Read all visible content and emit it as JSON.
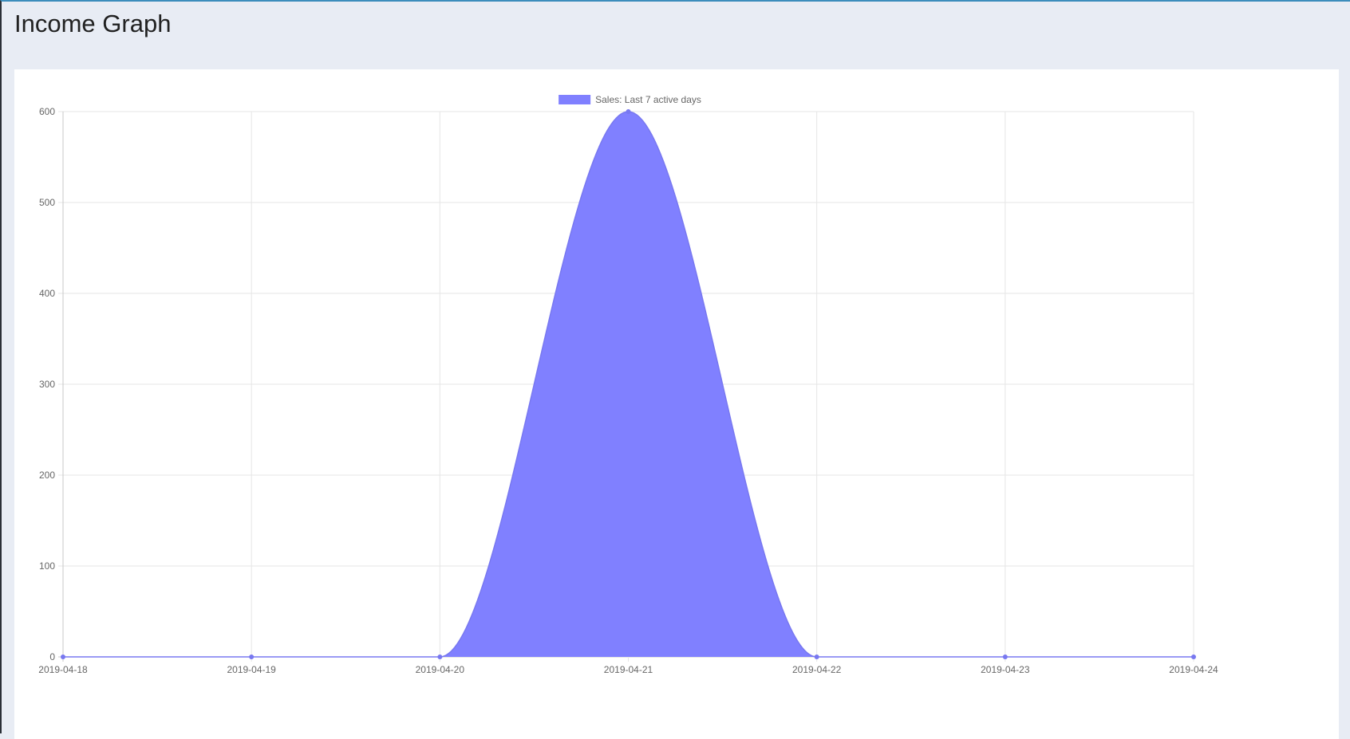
{
  "header": {
    "title": "Income Graph"
  },
  "chart_data": {
    "type": "area",
    "title": "",
    "xlabel": "",
    "ylabel": "",
    "categories": [
      "2019-04-18",
      "2019-04-19",
      "2019-04-20",
      "2019-04-21",
      "2019-04-22",
      "2019-04-23",
      "2019-04-24"
    ],
    "series": [
      {
        "name": "Sales: Last 7 active days",
        "values": [
          0,
          0,
          0,
          600,
          0,
          0,
          0
        ],
        "fill_color": "#8080ff",
        "line_color": "#7878f0"
      }
    ],
    "ylim": [
      0,
      600
    ],
    "yticks": [
      0,
      100,
      200,
      300,
      400,
      500,
      600
    ],
    "grid": true,
    "legend_position": "top-center",
    "curve": "smooth"
  }
}
